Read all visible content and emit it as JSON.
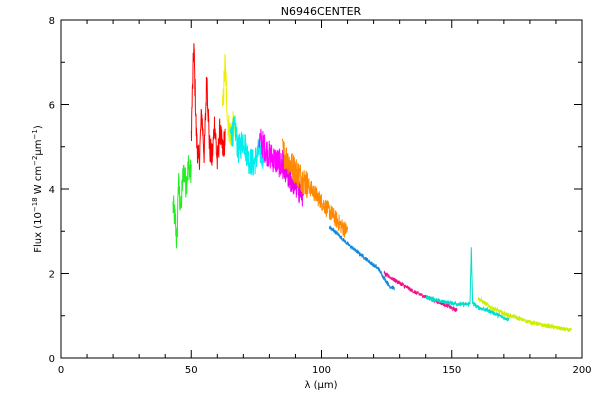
{
  "chart_data": {
    "type": "line",
    "title": "N6946CENTER",
    "xlabel": "λ (μm)",
    "ylabel": "Flux (10^-18 W cm^-2 μm^-1)",
    "ylabel_parts": {
      "prefix": "Flux (10",
      "exp1": "−18",
      "mid": " W cm",
      "exp2": "−2",
      "mid2": "μm",
      "exp3": "−1",
      "suffix": ")"
    },
    "xlim": [
      0,
      200
    ],
    "ylim": [
      0,
      8
    ],
    "x_ticks": [
      0,
      50,
      100,
      150,
      200
    ],
    "x_tick_labels": [
      "0",
      "50",
      "100",
      "150",
      "200"
    ],
    "y_ticks": [
      0,
      2,
      4,
      6,
      8
    ],
    "y_tick_labels": [
      "0",
      "2",
      "4",
      "6",
      "8"
    ],
    "grid": false,
    "legend": "none",
    "series": [
      {
        "color": "#22ee22",
        "range": [
          43,
          50
        ],
        "points": [
          [
            43,
            3.6
          ],
          [
            44,
            3.2
          ],
          [
            44.5,
            2.6
          ],
          [
            45,
            4.2
          ],
          [
            46,
            3.5
          ],
          [
            47,
            4.5
          ],
          [
            48,
            4.1
          ],
          [
            49,
            4.6
          ],
          [
            50,
            4.3
          ]
        ]
      },
      {
        "color": "#ff0000",
        "range": [
          50,
          63
        ],
        "points": [
          [
            50,
            5.3
          ],
          [
            51,
            7.4
          ],
          [
            52,
            5.2
          ],
          [
            53,
            4.6
          ],
          [
            54,
            5.8
          ],
          [
            55,
            4.8
          ],
          [
            56,
            6.7
          ],
          [
            57,
            5.0
          ],
          [
            58,
            4.7
          ],
          [
            59,
            5.6
          ],
          [
            60,
            4.6
          ],
          [
            61,
            5.4
          ],
          [
            62,
            4.9
          ],
          [
            63,
            5.2
          ]
        ]
      },
      {
        "color": "#eeee00",
        "range": [
          62,
          67
        ],
        "points": [
          [
            62,
            5.8
          ],
          [
            63,
            7.0
          ],
          [
            64,
            5.6
          ],
          [
            65,
            5.3
          ],
          [
            66,
            5.5
          ],
          [
            67,
            5.4
          ]
        ]
      },
      {
        "color": "#00eeee",
        "range": [
          65,
          78
        ],
        "points": [
          [
            65,
            5.3
          ],
          [
            67,
            5.4
          ],
          [
            68,
            4.9
          ],
          [
            70,
            5.2
          ],
          [
            72,
            4.7
          ],
          [
            74,
            4.6
          ],
          [
            76,
            4.9
          ],
          [
            78,
            4.8
          ]
        ]
      },
      {
        "color": "#ff00ff",
        "range": [
          76,
          87
        ],
        "points": [
          [
            76,
            5.2
          ],
          [
            78,
            5.0
          ],
          [
            80,
            4.8
          ],
          [
            82,
            4.7
          ],
          [
            84,
            4.6
          ],
          [
            86,
            4.5
          ],
          [
            87,
            4.5
          ]
        ]
      },
      {
        "color": "#ee00ee",
        "range": [
          85,
          93
        ],
        "points": [
          [
            85,
            4.6
          ],
          [
            87,
            4.3
          ],
          [
            89,
            4.2
          ],
          [
            91,
            4.0
          ],
          [
            93,
            3.9
          ]
        ]
      },
      {
        "color": "#ff8800",
        "range": [
          85,
          110
        ],
        "points": [
          [
            85,
            4.9
          ],
          [
            88,
            4.6
          ],
          [
            92,
            4.3
          ],
          [
            96,
            4.0
          ],
          [
            100,
            3.7
          ],
          [
            104,
            3.4
          ],
          [
            108,
            3.1
          ],
          [
            110,
            3.0
          ]
        ]
      },
      {
        "color": "#1188dd",
        "range": [
          103,
          128
        ],
        "points": [
          [
            103,
            3.1
          ],
          [
            106,
            2.95
          ],
          [
            110,
            2.7
          ],
          [
            114,
            2.5
          ],
          [
            118,
            2.3
          ],
          [
            122,
            2.1
          ],
          [
            124,
            1.9
          ],
          [
            126,
            1.7
          ],
          [
            128,
            1.65
          ]
        ]
      },
      {
        "color": "#ee1188",
        "range": [
          124,
          152
        ],
        "points": [
          [
            124,
            2.0
          ],
          [
            128,
            1.85
          ],
          [
            132,
            1.7
          ],
          [
            136,
            1.55
          ],
          [
            140,
            1.45
          ],
          [
            144,
            1.35
          ],
          [
            148,
            1.25
          ],
          [
            152,
            1.12
          ]
        ]
      },
      {
        "color": "#00ddcc",
        "range": [
          140,
          172
        ],
        "points": [
          [
            140,
            1.45
          ],
          [
            145,
            1.35
          ],
          [
            150,
            1.3
          ],
          [
            154,
            1.27
          ],
          [
            156,
            1.27
          ],
          [
            157,
            1.28
          ],
          [
            157.5,
            2.6
          ],
          [
            158,
            1.3
          ],
          [
            160,
            1.2
          ],
          [
            165,
            1.1
          ],
          [
            170,
            0.95
          ],
          [
            172,
            0.92
          ]
        ]
      },
      {
        "color": "#ccee00",
        "range": [
          160,
          196
        ],
        "points": [
          [
            160,
            1.42
          ],
          [
            165,
            1.2
          ],
          [
            170,
            1.05
          ],
          [
            175,
            0.95
          ],
          [
            180,
            0.85
          ],
          [
            185,
            0.78
          ],
          [
            190,
            0.72
          ],
          [
            195,
            0.66
          ],
          [
            196,
            0.65
          ]
        ]
      }
    ]
  }
}
